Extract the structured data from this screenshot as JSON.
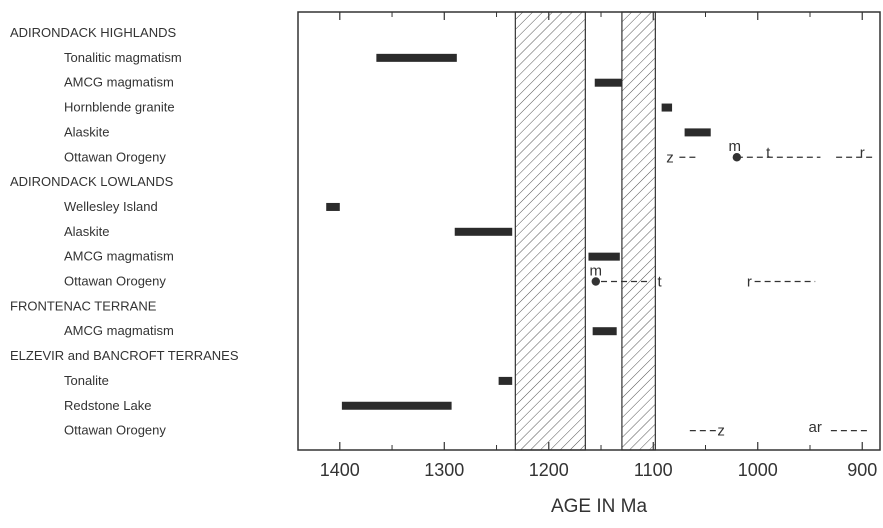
{
  "chart_data": {
    "type": "range-timeline",
    "xlabel": "AGE IN Ma",
    "x_reversed": true,
    "xlim": [
      1440,
      883
    ],
    "x_ticks": [
      1400,
      1300,
      1200,
      1100,
      1000,
      900
    ],
    "x_tick_labels": [
      "1400",
      "1300",
      "1200",
      "1100",
      "1000",
      "900"
    ],
    "hatched_intervals": [
      [
        1232,
        1165
      ],
      [
        1130,
        1098
      ]
    ],
    "rows": [
      {
        "label": "ADIRONDACK HIGHLANDS",
        "header": true
      },
      {
        "label": "Tonalitic magmatism",
        "bars": [
          [
            1365,
            1288
          ]
        ]
      },
      {
        "label": "AMCG magmatism",
        "bars": [
          [
            1156,
            1130
          ]
        ]
      },
      {
        "label": "Hornblende granite",
        "bars": [
          [
            1092,
            1082
          ]
        ]
      },
      {
        "label": "Alaskite",
        "bars": [
          [
            1070,
            1045
          ]
        ]
      },
      {
        "label": "Ottawan Orogeny",
        "dashes": [
          [
            1075,
            1057
          ],
          [
            1020,
            940
          ],
          [
            925,
            888
          ]
        ],
        "points": [
          1020
        ],
        "annotations": [
          {
            "text": "z",
            "x": 1084,
            "row_offset": 0
          },
          {
            "text": "m",
            "x": 1022,
            "row_offset": -0.45
          },
          {
            "text": "t",
            "x": 990,
            "row_offset": -0.2
          },
          {
            "text": "r",
            "x": 900,
            "row_offset": -0.2
          }
        ]
      },
      {
        "label": "ADIRONDACK LOWLANDS",
        "header": true
      },
      {
        "label": "Wellesley Island",
        "bars": [
          [
            1413,
            1400
          ]
        ]
      },
      {
        "label": "Alaskite",
        "bars": [
          [
            1290,
            1235
          ]
        ]
      },
      {
        "label": "AMCG magmatism",
        "bars": [
          [
            1162,
            1132
          ]
        ]
      },
      {
        "label": "Ottawan Orogeny",
        "dashes": [
          [
            1150,
            1105
          ],
          [
            1003,
            945
          ]
        ],
        "points": [
          1155
        ],
        "annotations": [
          {
            "text": "m",
            "x": 1155,
            "row_offset": -0.45
          },
          {
            "text": "t",
            "x": 1094,
            "row_offset": 0
          },
          {
            "text": "r",
            "x": 1008,
            "row_offset": 0
          }
        ]
      },
      {
        "label": "FRONTENAC TERRANE",
        "header": true
      },
      {
        "label": "AMCG magmatism",
        "bars": [
          [
            1158,
            1135
          ]
        ]
      },
      {
        "label": "ELZEVIR and BANCROFT TERRANES",
        "header": true
      },
      {
        "label": "Tonalite",
        "bars": [
          [
            1248,
            1235
          ]
        ]
      },
      {
        "label": "Redstone Lake",
        "bars": [
          [
            1398,
            1293
          ]
        ]
      },
      {
        "label": "Ottawan Orogeny",
        "dashes": [
          [
            1065,
            1040
          ],
          [
            930,
            895
          ]
        ],
        "points": [],
        "annotations": [
          {
            "text": "z",
            "x": 1035,
            "row_offset": 0
          },
          {
            "text": "ar",
            "x": 945,
            "row_offset": -0.15
          }
        ]
      }
    ]
  }
}
